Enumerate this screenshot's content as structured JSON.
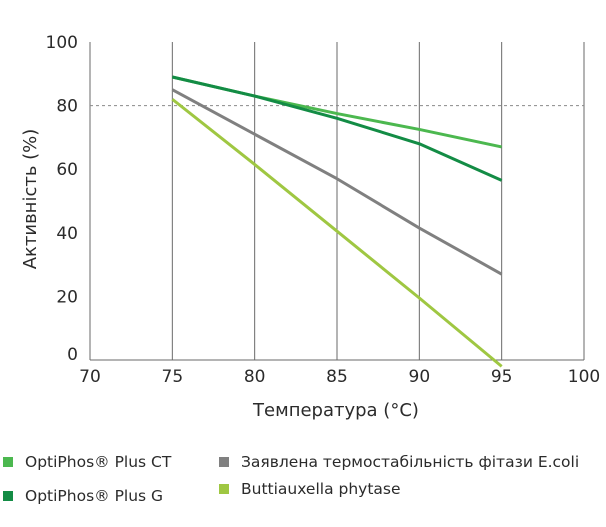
{
  "chart_data": {
    "type": "line",
    "title": "",
    "xlabel": "Температура (°C)",
    "ylabel": "Активність (%)",
    "xlim": [
      70,
      100
    ],
    "ylim": [
      0,
      100
    ],
    "xticks": [
      "70",
      "75",
      "80",
      "85",
      "90",
      "95",
      "100"
    ],
    "yticks": [
      "0",
      "20",
      "40",
      "60",
      "80",
      "100"
    ],
    "grid": "vertical",
    "reference_line": {
      "y": 80,
      "style": "dashed"
    },
    "legend_position": "bottom",
    "series": [
      {
        "name": "OptiPhos® Plus CT",
        "color": "#4cb84f",
        "x": [
          75,
          80,
          85,
          90,
          95
        ],
        "y": [
          89,
          83,
          77.5,
          72.5,
          67
        ]
      },
      {
        "name": "OptiPhos® Plus G",
        "color": "#138c45",
        "x": [
          75,
          80,
          85,
          90,
          95
        ],
        "y": [
          89,
          83,
          76,
          68,
          56.5
        ]
      },
      {
        "name": "Заявлена термостабільність фітази E.coli",
        "color": "#808080",
        "x": [
          75,
          80,
          85,
          90,
          95
        ],
        "y": [
          85,
          71,
          57,
          41.5,
          27
        ]
      },
      {
        "name": "Buttiauxella phytase",
        "color": "#9fc742",
        "x": [
          75,
          80,
          85,
          90,
          95
        ],
        "y": [
          82,
          61.5,
          40.5,
          19.5,
          -2
        ]
      }
    ]
  }
}
